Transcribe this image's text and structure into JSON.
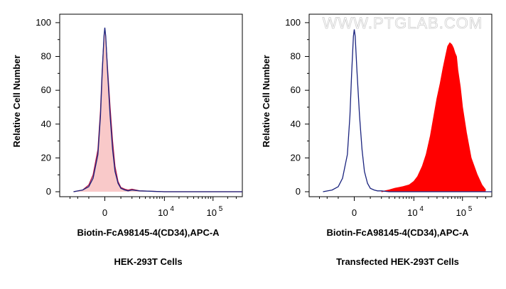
{
  "watermark": "WWW.PTGLAB.COM",
  "chart_data": [
    {
      "type": "area",
      "title": "",
      "xlabel": "Biotin-FcA98145-4(CD34),APC-A",
      "ylabel": "Relative Cell Number",
      "caption": "HEK-293T Cells",
      "ylim": [
        0,
        105
      ],
      "yticks": [
        0,
        20,
        40,
        60,
        80,
        100
      ],
      "xticks": [
        {
          "base": "0",
          "exp": ""
        },
        {
          "base": "10",
          "exp": "4"
        },
        {
          "base": "10",
          "exp": "5"
        }
      ],
      "x_scale": "biexponential",
      "grid": false,
      "series": [
        {
          "role": "control",
          "color": "#1a237e",
          "fill": "#f8c9c9",
          "x": [
            -2500,
            -1500,
            -1000,
            -700,
            -400,
            -250,
            -150,
            -50,
            0,
            50,
            150,
            300,
            450,
            600,
            800,
            1000,
            1300,
            1600,
            2000,
            3000,
            10000,
            100000,
            400000
          ],
          "y": [
            0,
            1,
            3,
            8,
            22,
            45,
            70,
            92,
            97,
            92,
            72,
            45,
            25,
            12,
            5,
            2,
            1,
            0.5,
            1,
            0.5,
            0,
            0,
            0
          ]
        },
        {
          "role": "sample",
          "color": "#b71c4a",
          "fill": "#f8c9c9",
          "x": [
            -2500,
            -1500,
            -1000,
            -700,
            -400,
            -250,
            -150,
            -50,
            0,
            50,
            150,
            300,
            450,
            600,
            800,
            1000,
            1300,
            1600,
            2000,
            3000,
            10000,
            100000,
            400000
          ],
          "y": [
            0,
            1,
            4,
            10,
            25,
            48,
            72,
            90,
            95,
            90,
            74,
            50,
            30,
            15,
            6,
            2.5,
            1.5,
            1,
            1.5,
            0.5,
            0,
            0,
            0
          ]
        }
      ]
    },
    {
      "type": "area",
      "title": "",
      "xlabel": "Biotin-FcA98145-4(CD34),APC-A",
      "ylabel": "Relative Cell Number",
      "caption": "Transfected HEK-293T Cells",
      "ylim": [
        0,
        105
      ],
      "yticks": [
        0,
        20,
        40,
        60,
        80,
        100
      ],
      "xticks": [
        {
          "base": "0",
          "exp": ""
        },
        {
          "base": "10",
          "exp": "4"
        },
        {
          "base": "10",
          "exp": "5"
        }
      ],
      "x_scale": "biexponential",
      "grid": false,
      "series": [
        {
          "role": "control",
          "color": "#1a237e",
          "fill": "none",
          "x": [
            -2500,
            -1500,
            -1000,
            -700,
            -400,
            -250,
            -150,
            -50,
            0,
            50,
            150,
            300,
            450,
            600,
            800,
            1000,
            1300,
            1600,
            2000,
            3000,
            10000,
            100000,
            400000
          ],
          "y": [
            0,
            1,
            3,
            8,
            22,
            45,
            70,
            92,
            96,
            92,
            72,
            45,
            25,
            12,
            5,
            2,
            1,
            0.5,
            0.5,
            0,
            0,
            0,
            0
          ]
        },
        {
          "role": "sample",
          "color": "#ff0000",
          "fill": "#ff0000",
          "x": [
            2000,
            3000,
            4000,
            5000,
            6000,
            8000,
            10000,
            12000,
            15000,
            18000,
            22000,
            26000,
            30000,
            35000,
            40000,
            45000,
            50000,
            55000,
            60000,
            65000,
            70000,
            75000,
            80000,
            90000,
            100000,
            120000,
            150000,
            200000,
            250000,
            300000
          ],
          "y": [
            0,
            1,
            2,
            2.5,
            3,
            4,
            6,
            9,
            15,
            22,
            33,
            45,
            55,
            64,
            73,
            80,
            86,
            88,
            87,
            85,
            82,
            80,
            72,
            62,
            50,
            35,
            20,
            10,
            4,
            1
          ]
        }
      ]
    }
  ]
}
